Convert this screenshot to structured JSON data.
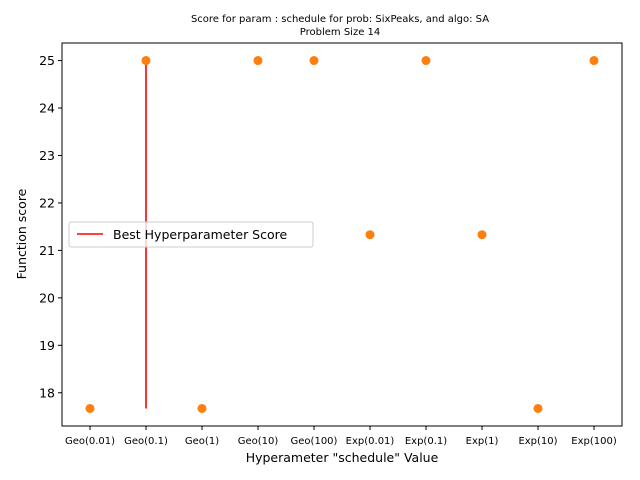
{
  "chart_data": {
    "type": "scatter",
    "title_lines": [
      "Score for param : schedule for prob: SixPeaks, and algo: SA",
      "Problem Size 14"
    ],
    "xlabel": "Hyperameter \"schedule\" Value",
    "ylabel": "Function score",
    "categories": [
      "Geo(0.01)",
      "Geo(0.1)",
      "Geo(1)",
      "Geo(10)",
      "Geo(100)",
      "Exp(0.01)",
      "Exp(0.1)",
      "Exp(1)",
      "Exp(10)",
      "Exp(100)"
    ],
    "values": [
      17.67,
      25.0,
      17.67,
      25.0,
      25.0,
      21.33,
      25.0,
      21.33,
      17.67,
      25.0
    ],
    "ylim": [
      17.3,
      25.37
    ],
    "yticks": [
      18,
      19,
      20,
      21,
      22,
      23,
      24,
      25
    ],
    "point_color": "#ff7f0e",
    "best": {
      "label": "Best Hyperparameter Score",
      "category_index": 1,
      "y_from": 17.67,
      "y_to": 25.0,
      "color": "#ff0000"
    },
    "legend_placement": "center-left",
    "grid": false
  }
}
